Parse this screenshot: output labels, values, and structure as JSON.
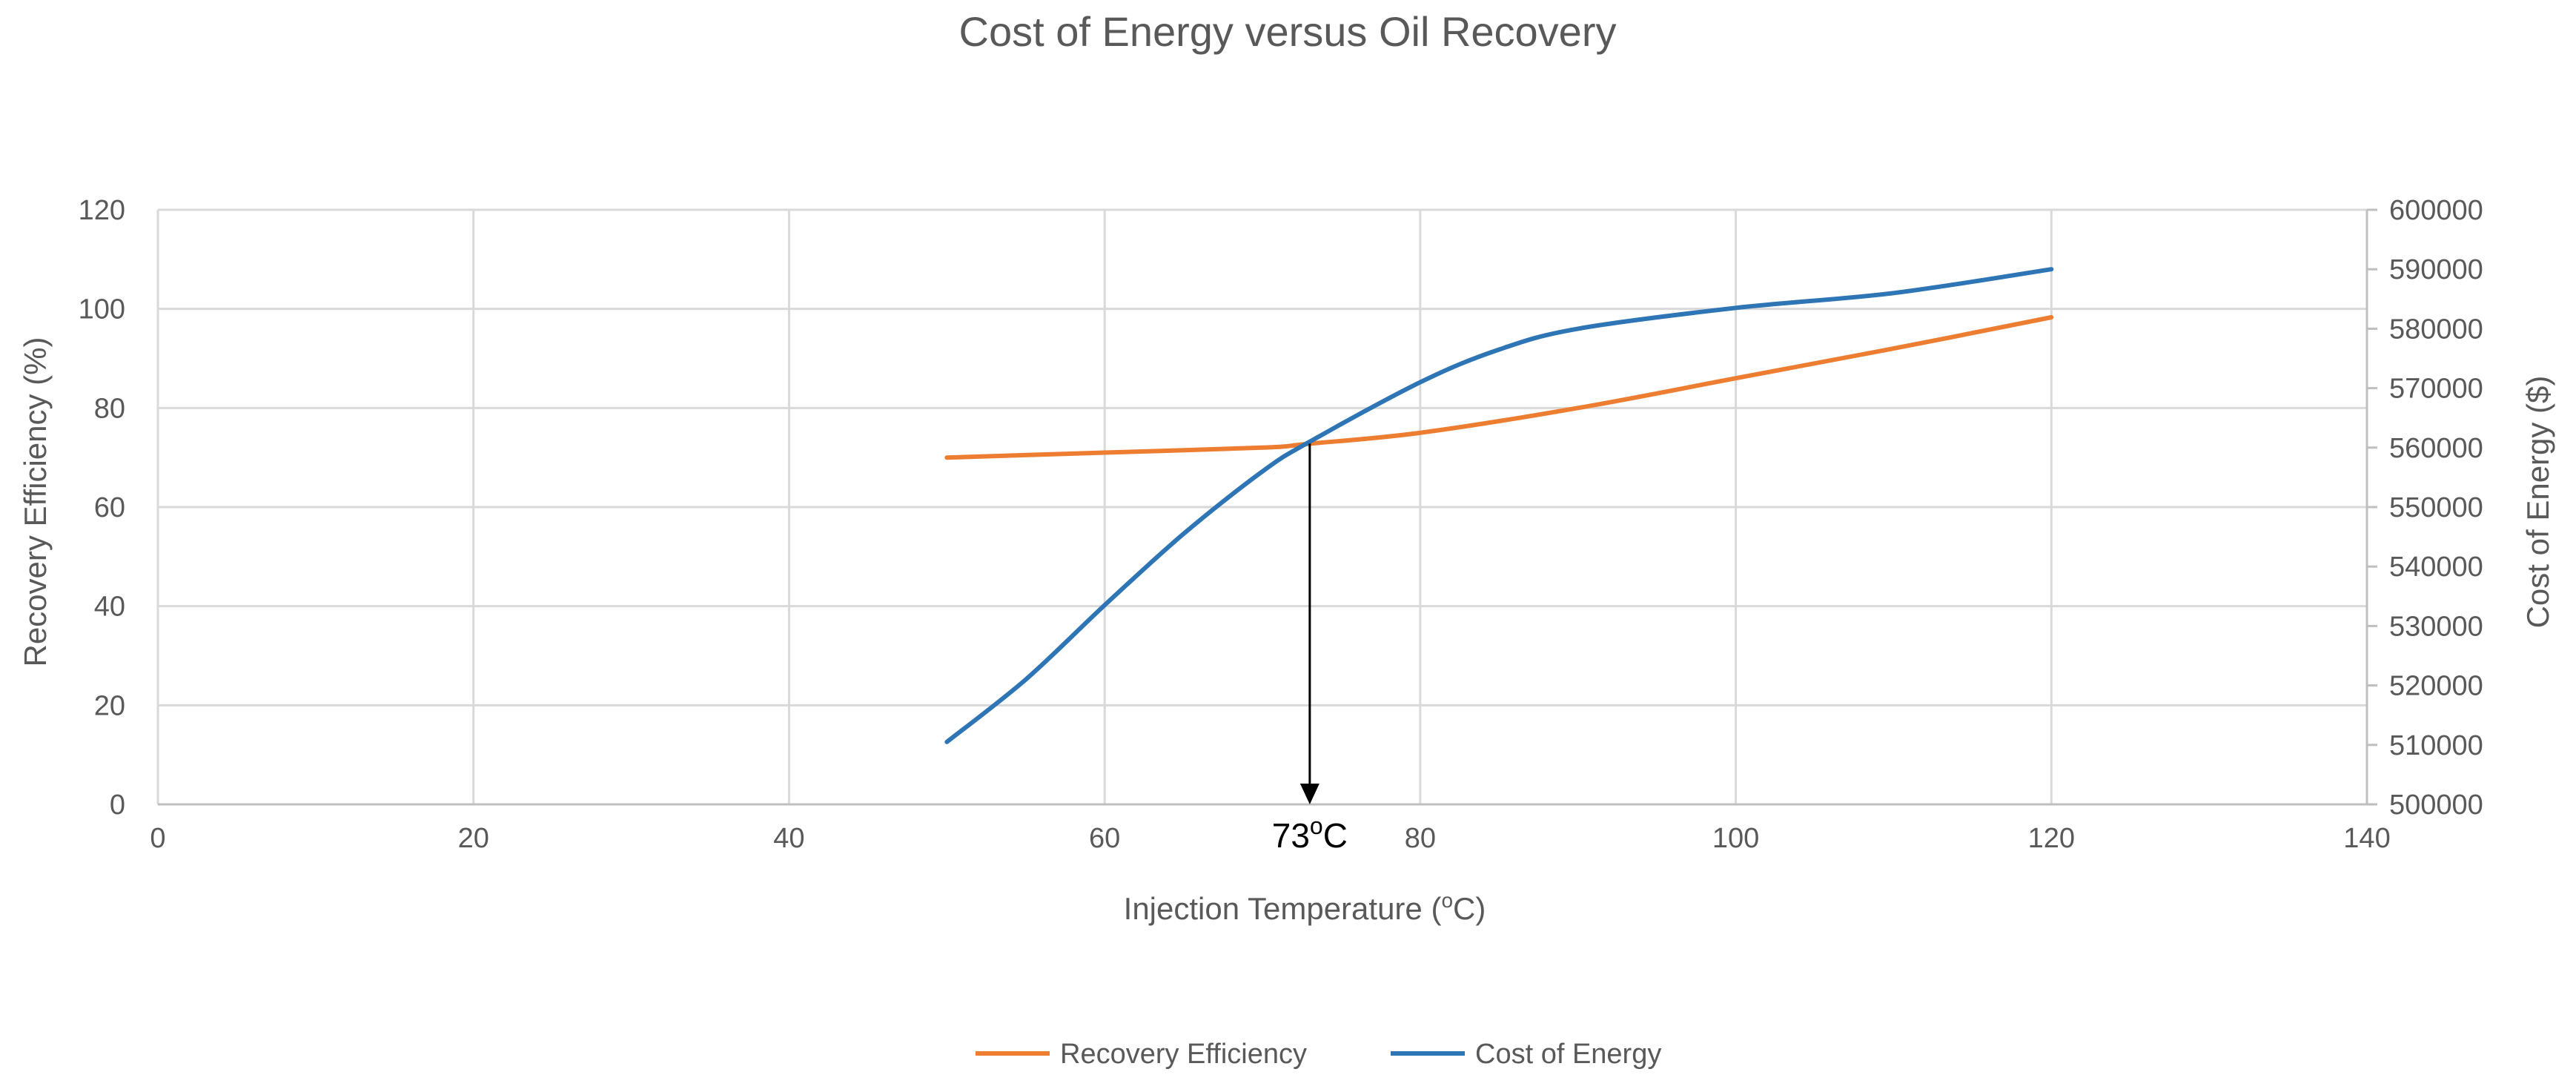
{
  "chart_data": {
    "type": "line",
    "title": "Cost of Energy versus Oil Recovery",
    "xlabel": "Injection Temperature (oC)",
    "ylabel": "Recovery Efficiency (%)",
    "y2label": "Cost of Energy ($)",
    "xlim": [
      0,
      140
    ],
    "ylim": [
      0,
      120
    ],
    "y2lim": [
      500000,
      600000
    ],
    "x_ticks": [
      "0",
      "20",
      "40",
      "60",
      "80",
      "100",
      "120",
      "140"
    ],
    "y_ticks": [
      "0",
      "20",
      "40",
      "60",
      "80",
      "100",
      "120"
    ],
    "y2_ticks": [
      "500000",
      "510000",
      "520000",
      "530000",
      "540000",
      "550000",
      "560000",
      "570000",
      "580000",
      "590000",
      "600000"
    ],
    "grid": true,
    "legend_position": "bottom-center",
    "series": [
      {
        "name": "Recovery Efficiency",
        "axis": "left",
        "color": "#ED7D31",
        "x": [
          50,
          60,
          70,
          73,
          80,
          90,
          100,
          110,
          120
        ],
        "values": [
          70,
          71,
          72,
          72.8,
          75,
          80,
          86,
          92,
          98.3
        ]
      },
      {
        "name": "Cost of Energy",
        "axis": "right",
        "color": "#2E75B6",
        "x": [
          50,
          55,
          60,
          65,
          70,
          73,
          80,
          85,
          90,
          100,
          110,
          120
        ],
        "values": [
          510500,
          521000,
          533500,
          545500,
          556000,
          561000,
          571000,
          576500,
          580000,
          583500,
          586000,
          590000
        ]
      }
    ],
    "annotation": {
      "x": 73,
      "y": 72.8,
      "label_main": "73",
      "label_sup": "o",
      "label_unit": "C"
    }
  }
}
